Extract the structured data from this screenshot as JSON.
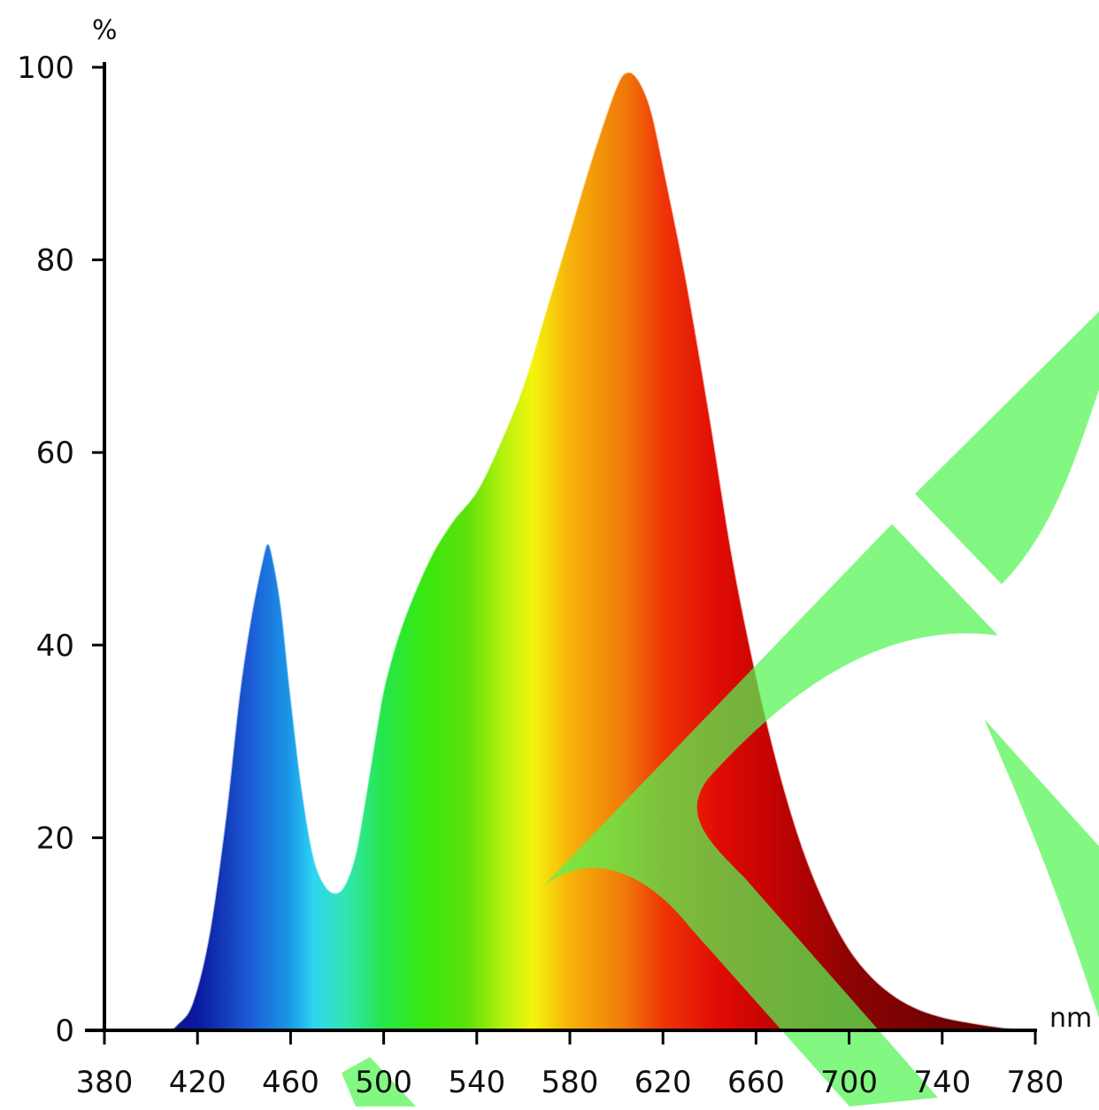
{
  "chart_data": {
    "type": "area",
    "title": "",
    "xlabel": "nm",
    "ylabel": "%",
    "xlim": [
      380,
      780
    ],
    "ylim": [
      0,
      100
    ],
    "x_ticks": [
      380,
      420,
      460,
      500,
      540,
      580,
      620,
      660,
      700,
      740,
      780
    ],
    "y_ticks": [
      0,
      20,
      40,
      60,
      80,
      100
    ],
    "grid": false,
    "legend": "none",
    "fill": "visible-spectrum gradient",
    "series": [
      {
        "x": [
          380,
          405,
          412,
          418,
          425,
          432,
          438,
          443,
          448,
          450,
          452,
          456,
          460,
          465,
          470,
          475,
          480,
          484,
          488,
          492,
          496,
          500,
          505,
          510,
          516,
          522,
          530,
          540,
          550,
          560,
          570,
          580,
          590,
          600,
          605,
          610,
          615,
          620,
          630,
          640,
          650,
          660,
          670,
          680,
          690,
          700,
          710,
          720,
          730,
          740,
          750,
          760,
          770,
          780
        ],
        "y": [
          0,
          0,
          0.8,
          3,
          10,
          22,
          35,
          43,
          49,
          50.5,
          49.5,
          44,
          35,
          25,
          18,
          15,
          14.3,
          15.5,
          18.5,
          24,
          30,
          35.5,
          40,
          43.5,
          47,
          50,
          53,
          56,
          61,
          67,
          75,
          83,
          91,
          98,
          99.5,
          98.5,
          95.5,
          90,
          78,
          64,
          49,
          37,
          27,
          19,
          13,
          8.5,
          5.5,
          3.5,
          2.2,
          1.4,
          0.9,
          0.5,
          0.2,
          0
        ]
      }
    ]
  },
  "watermark": {
    "shape": "logo-strokes",
    "color": "#52f552"
  }
}
